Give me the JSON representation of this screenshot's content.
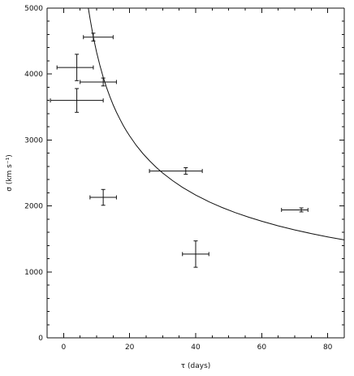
{
  "chart_data": {
    "type": "scatter",
    "title": "",
    "xlabel": "τ (days)",
    "ylabel": "σ (km s⁻¹)",
    "xlim": [
      -5,
      85
    ],
    "ylim": [
      0,
      5000
    ],
    "xticks": [
      0,
      20,
      40,
      60,
      80
    ],
    "yticks": [
      0,
      1000,
      2000,
      3000,
      4000,
      5000
    ],
    "xtick_labels": [
      "0",
      "20",
      "40",
      "60",
      "80"
    ],
    "ytick_labels": [
      "0",
      "1000",
      "2000",
      "3000",
      "4000",
      "5000"
    ],
    "grid": false,
    "points": [
      {
        "x": 9,
        "y": 4560,
        "xerr": [
          3,
          6
        ],
        "yerr": [
          60,
          60
        ]
      },
      {
        "x": 4,
        "y": 4100,
        "xerr": [
          6,
          5
        ],
        "yerr": [
          200,
          200
        ]
      },
      {
        "x": 12,
        "y": 3880,
        "xerr": [
          7,
          4
        ],
        "yerr": [
          60,
          60
        ]
      },
      {
        "x": 4,
        "y": 3600,
        "xerr": [
          8,
          8
        ],
        "yerr": [
          180,
          180
        ]
      },
      {
        "x": 12,
        "y": 2130,
        "xerr": [
          4,
          4
        ],
        "yerr": [
          120,
          120
        ]
      },
      {
        "x": 37,
        "y": 2530,
        "xerr": [
          11,
          5
        ],
        "yerr": [
          50,
          50
        ]
      },
      {
        "x": 72,
        "y": 1940,
        "xerr": [
          6,
          2
        ],
        "yerr": [
          30,
          30
        ]
      },
      {
        "x": 40,
        "y": 1270,
        "xerr": [
          4,
          4
        ],
        "yerr": [
          200,
          200
        ]
      }
    ],
    "fit": {
      "relation": "sigma proportional to tau^-0.5",
      "x": [
        7.5,
        8,
        9,
        10,
        11,
        12,
        13,
        14,
        15,
        16,
        17,
        18,
        19,
        20,
        22,
        24,
        26,
        28,
        30,
        33,
        36,
        40,
        44,
        48,
        52,
        56,
        60,
        65,
        70,
        75,
        80,
        85
      ],
      "y": [
        5000,
        4841,
        4564,
        4330,
        4128,
        3953,
        3797,
        3659,
        3535,
        3423,
        3321,
        3227,
        3141,
        3062,
        2919,
        2795,
        2686,
        2588,
        2500,
        2384,
        2282,
        2165,
        2064,
        1976,
        1899,
        1830,
        1768,
        1698,
        1637,
        1581,
        1531,
        1485
      ]
    }
  }
}
